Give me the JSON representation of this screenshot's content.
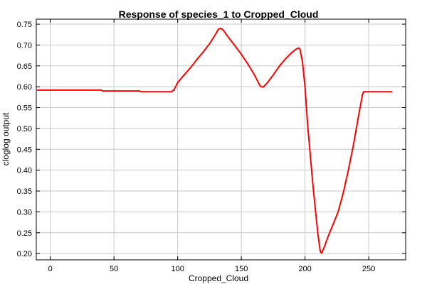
{
  "chart_data": {
    "type": "line",
    "title": "Response of species_1 to Cropped_Cloud",
    "xlabel": "Cropped_Cloud",
    "ylabel": "cloglog output",
    "xlim": [
      -11,
      279
    ],
    "ylim": [
      0.185,
      0.762
    ],
    "x_ticks": [
      0,
      50,
      100,
      150,
      200,
      250
    ],
    "y_ticks": [
      0.2,
      0.25,
      0.3,
      0.35,
      0.4,
      0.45,
      0.5,
      0.55,
      0.6,
      0.65,
      0.7,
      0.75
    ],
    "grid": true,
    "series": [
      {
        "name": "",
        "color": "#ff0000",
        "x": [
          -10,
          40,
          41,
          70,
          71,
          95,
          97,
          100,
          105,
          110,
          115,
          120,
          125,
          130,
          132,
          134,
          136,
          140,
          145,
          150,
          155,
          160,
          163,
          165,
          167,
          170,
          175,
          180,
          185,
          190,
          193,
          195,
          196,
          198,
          200,
          202,
          204,
          206,
          208,
          210,
          212,
          213,
          215,
          218,
          222,
          226,
          230,
          234,
          238,
          242,
          245,
          246,
          268
        ],
        "y": [
          0.592,
          0.592,
          0.59,
          0.59,
          0.588,
          0.588,
          0.592,
          0.61,
          0.628,
          0.645,
          0.665,
          0.683,
          0.703,
          0.727,
          0.738,
          0.74,
          0.735,
          0.718,
          0.698,
          0.678,
          0.655,
          0.63,
          0.612,
          0.601,
          0.599,
          0.608,
          0.628,
          0.65,
          0.668,
          0.683,
          0.69,
          0.693,
          0.69,
          0.66,
          0.6,
          0.51,
          0.44,
          0.37,
          0.31,
          0.25,
          0.205,
          0.201,
          0.215,
          0.24,
          0.27,
          0.3,
          0.345,
          0.4,
          0.46,
          0.53,
          0.58,
          0.588,
          0.588
        ]
      }
    ]
  }
}
